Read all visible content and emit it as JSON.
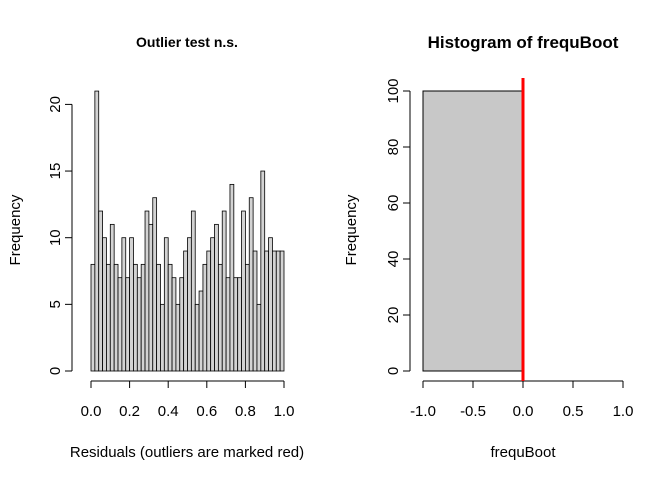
{
  "chart_data": [
    {
      "type": "bar",
      "title": "Outlier test n.s.",
      "xlabel": "Residuals (outliers are marked red)",
      "ylabel": "Frequency",
      "xlim": [
        0,
        1
      ],
      "ylim": [
        0,
        21
      ],
      "x_ticks": [
        "0.0",
        "0.2",
        "0.4",
        "0.6",
        "0.8",
        "1.0"
      ],
      "y_ticks": [
        "0",
        "5",
        "10",
        "15",
        "20"
      ],
      "bin_width": 0.02,
      "bin_starts": [
        0.0,
        0.02,
        0.04,
        0.06,
        0.08,
        0.1,
        0.12,
        0.14,
        0.16,
        0.18,
        0.2,
        0.22,
        0.24,
        0.26,
        0.28,
        0.3,
        0.32,
        0.34,
        0.36,
        0.38,
        0.4,
        0.42,
        0.44,
        0.46,
        0.48,
        0.5,
        0.52,
        0.54,
        0.56,
        0.58,
        0.6,
        0.62,
        0.64,
        0.66,
        0.68,
        0.7,
        0.72,
        0.74,
        0.76,
        0.78,
        0.8,
        0.82,
        0.84,
        0.86,
        0.88,
        0.9,
        0.92,
        0.94,
        0.96,
        0.98
      ],
      "values": [
        8,
        21,
        12,
        10,
        8,
        11,
        8,
        7,
        10,
        7,
        10,
        8,
        7,
        8,
        12,
        11,
        13,
        8,
        5,
        10,
        8,
        7,
        5,
        7,
        9,
        10,
        12,
        5,
        6,
        8,
        9,
        10,
        11,
        8,
        12,
        7,
        14,
        7,
        7,
        12,
        8,
        13,
        9,
        5,
        15,
        9,
        10,
        9,
        9,
        9
      ],
      "bar_fill": "#d3d3d3",
      "bar_stroke": "#000000",
      "grid": false
    },
    {
      "type": "bar",
      "title": "Histogram of frequBoot",
      "xlabel": "frequBoot",
      "ylabel": "Frequency",
      "xlim": [
        -1,
        1
      ],
      "ylim": [
        0,
        100
      ],
      "x_ticks": [
        "-1.0",
        "-0.5",
        "0.0",
        "0.5",
        "1.0"
      ],
      "y_ticks": [
        "0",
        "20",
        "40",
        "60",
        "80",
        "100"
      ],
      "bins": [
        {
          "start": -1.0,
          "end": 0.0,
          "value": 100
        }
      ],
      "reference_line": {
        "x": 0.0,
        "color": "#ff0000"
      },
      "bar_fill": "#c8c8c8",
      "bar_stroke": "#000000",
      "grid": false
    }
  ]
}
